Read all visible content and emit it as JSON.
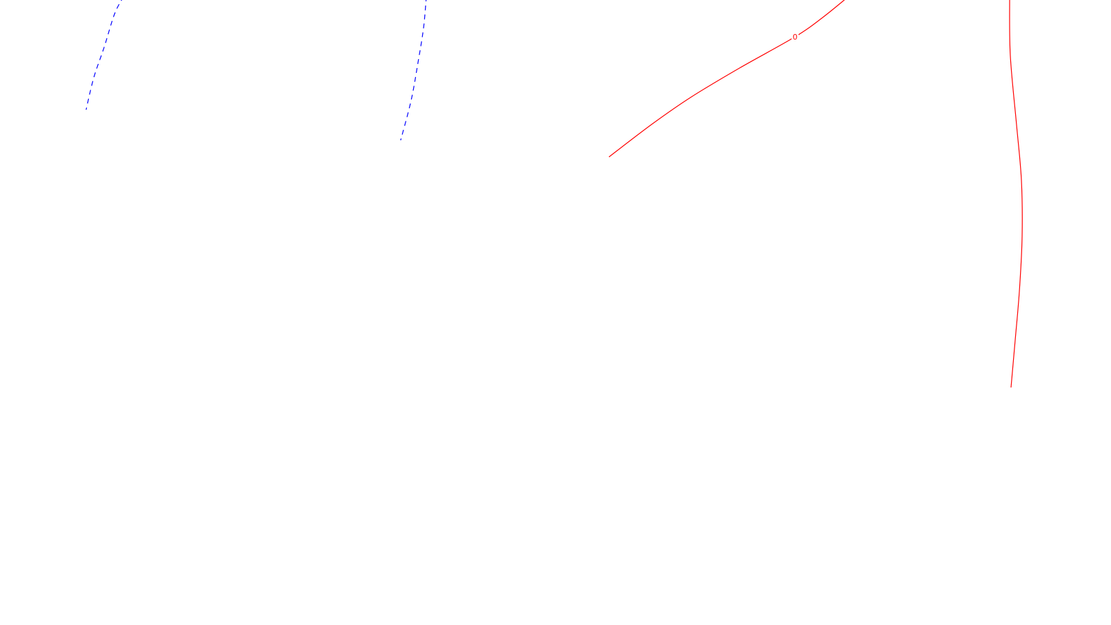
{
  "chart_data": {
    "type": "line",
    "plot_kind": "contour",
    "title": "",
    "xlabel": "",
    "ylabel": "",
    "axes_visible": false,
    "grid": false,
    "legend": "none",
    "colors": {
      "negative_contour": "#0000ff",
      "zero_contour": "#ff0000",
      "background": "#ffffff"
    },
    "series": [
      {
        "color": "#0000ff",
        "line_style": "dashed",
        "points": [
          [
            178,
            -5
          ],
          [
            165,
            20
          ],
          [
            150,
            68
          ],
          [
            135,
            112
          ],
          [
            124,
            158
          ]
        ]
      },
      {
        "color": "#0000ff",
        "line_style": "dashed",
        "points": [
          [
            614,
            -5
          ],
          [
            610,
            40
          ],
          [
            602,
            90
          ],
          [
            592,
            145
          ],
          [
            577,
            202
          ]
        ]
      },
      {
        "color": "#ff0000",
        "line_style": "solid",
        "label": "0",
        "label_at": [
          1145,
          53
        ],
        "points": [
          [
            1222,
            -5
          ],
          [
            1185,
            25
          ],
          [
            1145,
            53
          ],
          [
            1065,
            98
          ],
          [
            995,
            140
          ],
          [
            940,
            178
          ],
          [
            877,
            226
          ]
        ]
      },
      {
        "color": "#ff0000",
        "line_style": "solid",
        "points": [
          [
            1454,
            -5
          ],
          [
            1455,
            80
          ],
          [
            1464,
            180
          ],
          [
            1471,
            260
          ],
          [
            1472,
            340
          ],
          [
            1468,
            420
          ],
          [
            1462,
            490
          ],
          [
            1456,
            558
          ]
        ]
      }
    ],
    "labels": [
      {
        "text": "0",
        "color": "#ff0000",
        "x": 1145,
        "y": 53
      }
    ]
  }
}
